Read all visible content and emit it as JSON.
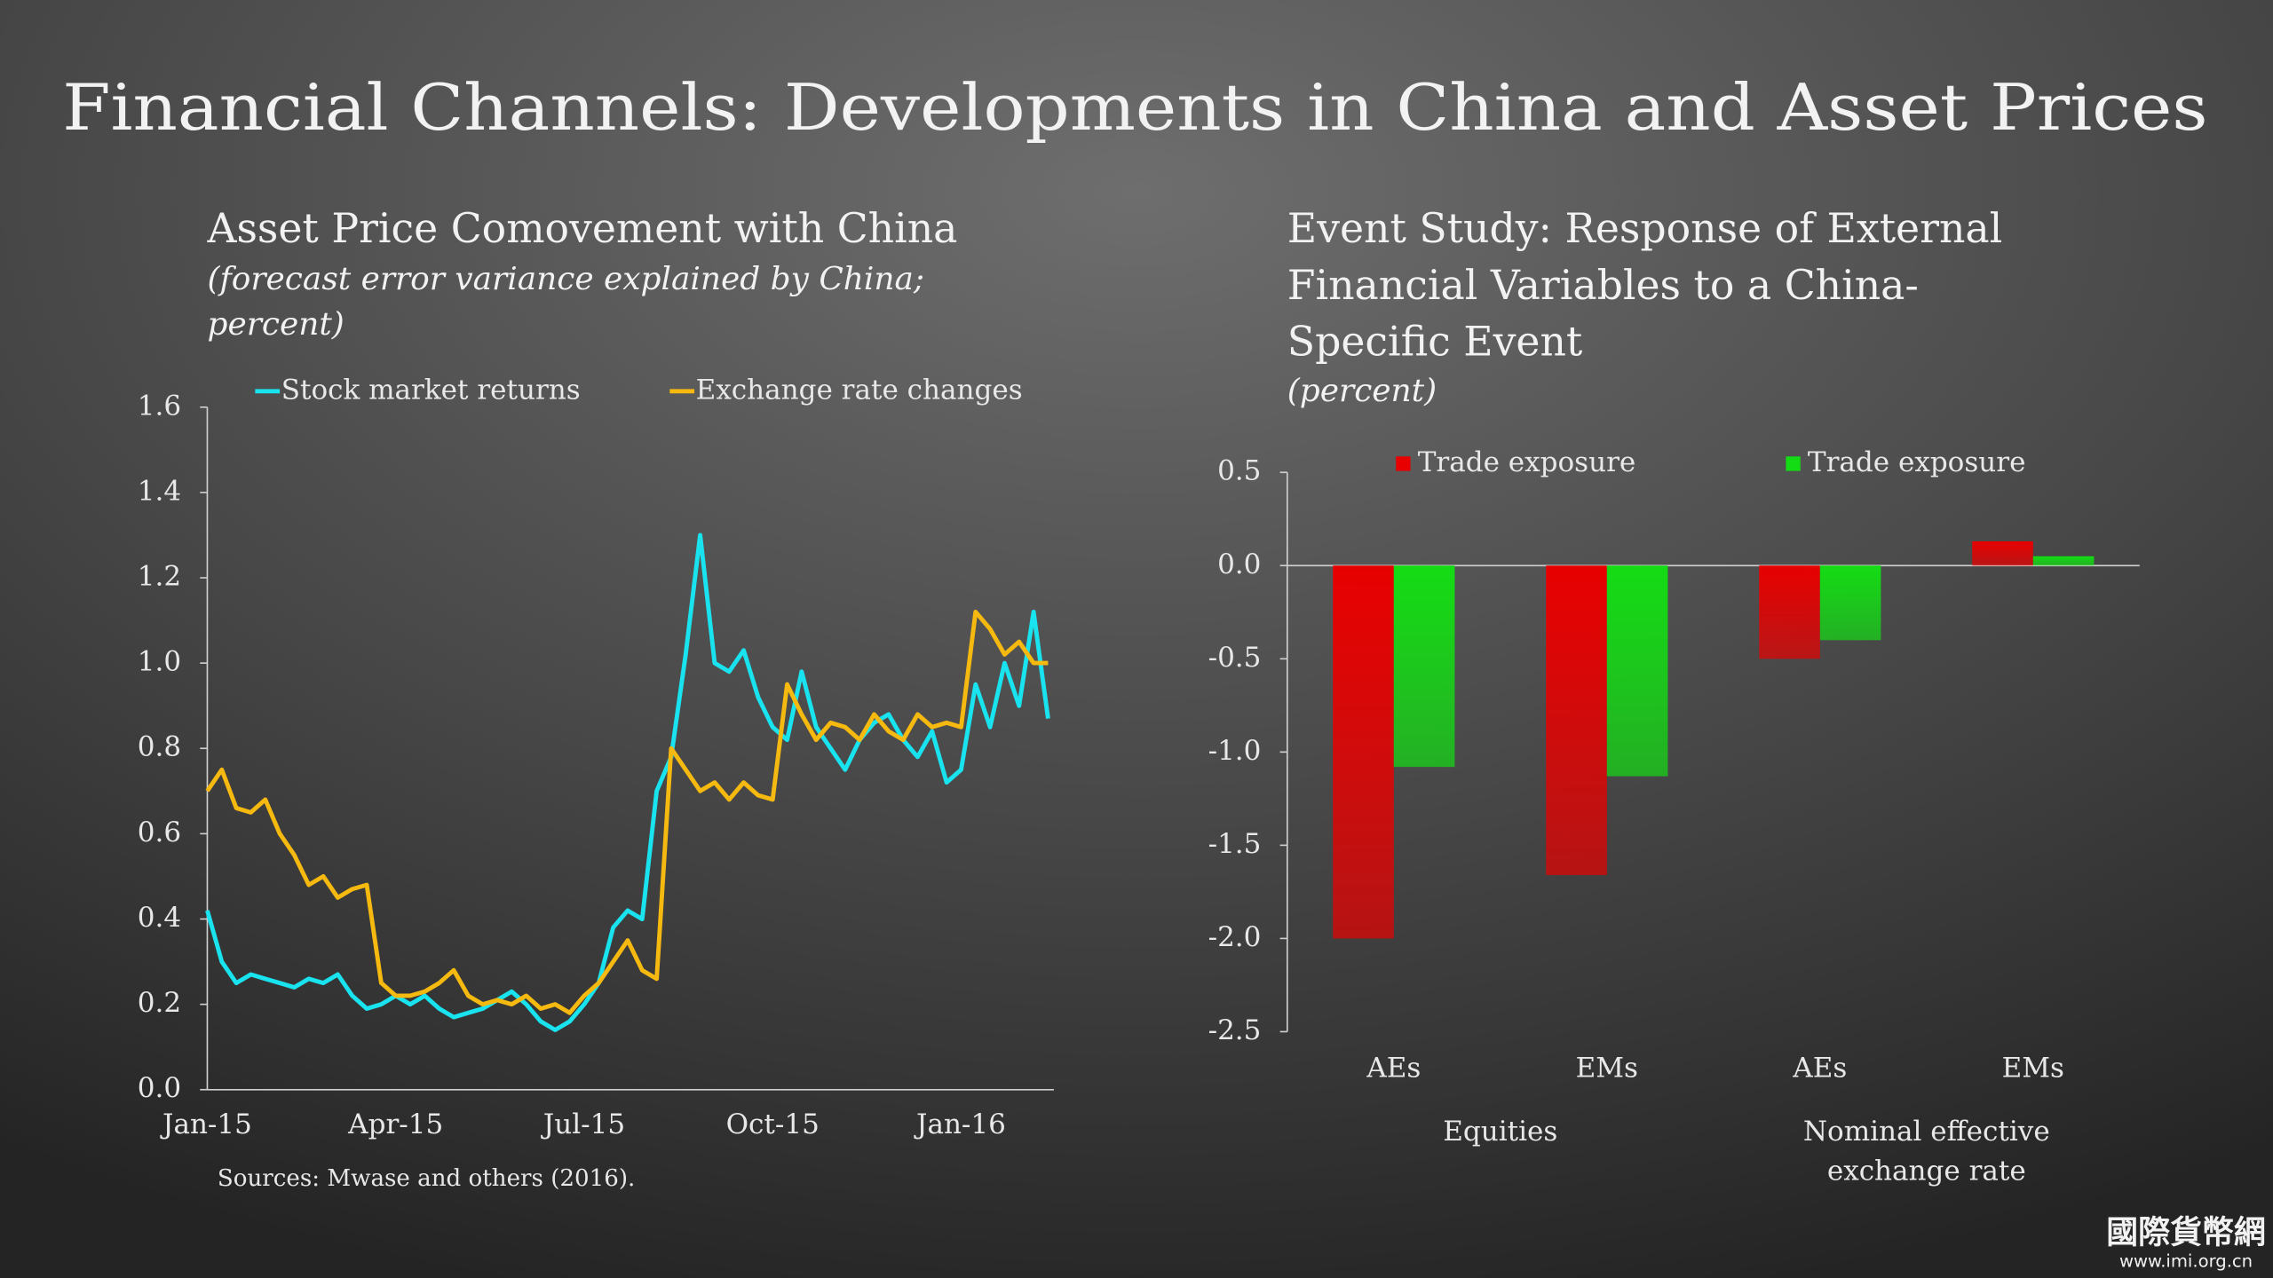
{
  "title": "Financial Channels: Developments in China and Asset Prices",
  "source": "Sources: Mwase and others (2016).",
  "watermark": [
    "國際貨幣網",
    "www.imi.org.cn"
  ],
  "chart_data": [
    {
      "type": "line",
      "title": [
        "Asset Price Comovement with China"
      ],
      "subtitle": [
        "(forecast error variance explained by China;",
        "percent)"
      ],
      "categories": [
        "Jan-15",
        null,
        null,
        null,
        null,
        null,
        null,
        null,
        null,
        null,
        null,
        null,
        null,
        "Apr-15",
        null,
        null,
        null,
        null,
        null,
        null,
        null,
        null,
        null,
        null,
        null,
        null,
        "Jul-15",
        null,
        null,
        null,
        null,
        null,
        null,
        null,
        null,
        null,
        null,
        null,
        null,
        "Oct-15",
        null,
        null,
        null,
        null,
        null,
        null,
        null,
        null,
        null,
        null,
        null,
        null,
        "Jan-16",
        null,
        null,
        null,
        null,
        null,
        null
      ],
      "series": [
        {
          "name": "Stock market returns",
          "color": "#19e3ee",
          "values": [
            0.42,
            0.3,
            0.25,
            0.27,
            0.26,
            0.25,
            0.24,
            0.26,
            0.25,
            0.27,
            0.22,
            0.19,
            0.2,
            0.22,
            0.2,
            0.22,
            0.19,
            0.17,
            0.18,
            0.19,
            0.21,
            0.23,
            0.2,
            0.16,
            0.14,
            0.16,
            0.2,
            0.25,
            0.38,
            0.42,
            0.4,
            0.7,
            0.78,
            1.02,
            1.3,
            1.0,
            0.98,
            1.03,
            0.92,
            0.85,
            0.82,
            0.98,
            0.85,
            0.8,
            0.75,
            0.82,
            0.86,
            0.88,
            0.82,
            0.78,
            0.84,
            0.72,
            0.75,
            0.95,
            0.85,
            1.0,
            0.9,
            1.12,
            0.87
          ]
        },
        {
          "name": "Exchange rate changes",
          "color": "#f6b90f",
          "values": [
            0.7,
            0.75,
            0.66,
            0.65,
            0.68,
            0.6,
            0.55,
            0.48,
            0.5,
            0.45,
            0.47,
            0.48,
            0.25,
            0.22,
            0.22,
            0.23,
            0.25,
            0.28,
            0.22,
            0.2,
            0.21,
            0.2,
            0.22,
            0.19,
            0.2,
            0.18,
            0.22,
            0.25,
            0.3,
            0.35,
            0.28,
            0.26,
            0.8,
            0.75,
            0.7,
            0.72,
            0.68,
            0.72,
            0.69,
            0.68,
            0.95,
            0.88,
            0.82,
            0.86,
            0.85,
            0.82,
            0.88,
            0.84,
            0.82,
            0.88,
            0.85,
            0.86,
            0.85,
            1.12,
            1.08,
            1.02,
            1.05,
            1.0,
            1.0
          ]
        }
      ],
      "ylim": [
        0,
        1.6
      ],
      "yticks": [
        {
          "value": 0,
          "label": "0.0"
        },
        0.2,
        0.4,
        0.6,
        0.8,
        {
          "value": 1,
          "label": "1.0"
        },
        1.2,
        1.4,
        1.6
      ],
      "legend": "top"
    },
    {
      "type": "bar",
      "title": [
        "Event Study: Response of External",
        "Financial Variables to a China-",
        "Specific Event"
      ],
      "subtitle": [
        "(percent)"
      ],
      "categories": [
        "AEs",
        "EMs",
        "AEs",
        "EMs"
      ],
      "groups": [
        [
          "Equities"
        ],
        [
          "Nominal effective",
          "exchange rate"
        ]
      ],
      "series": [
        {
          "name": "Trade exposure",
          "color": "#e80000",
          "values": [
            -2.0,
            -1.66,
            -0.5,
            0.13
          ]
        },
        {
          "name": "Trade exposure",
          "color": "#14dc14",
          "values": [
            -1.08,
            -1.13,
            -0.4,
            0.05
          ]
        }
      ],
      "ylim": [
        -2.5,
        0.5
      ],
      "yticks": [
        {
          "value": -2.5,
          "label": "-2.5"
        },
        {
          "value": -2,
          "label": "-2.0"
        },
        {
          "value": -1.5,
          "label": "-1.5"
        },
        {
          "value": -1,
          "label": "-1.0"
        },
        -0.5,
        {
          "value": 0,
          "label": "0.0"
        },
        0.5
      ],
      "legend": "top"
    }
  ]
}
